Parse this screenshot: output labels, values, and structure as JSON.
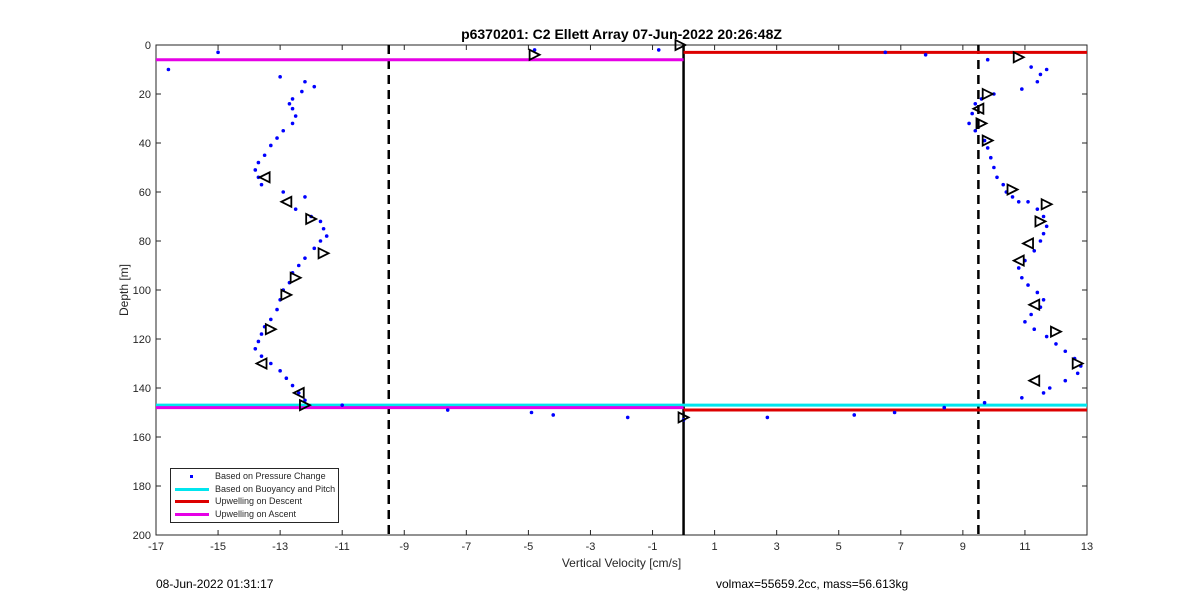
{
  "chart_data": {
    "type": "scatter",
    "title": "p6370201: C2 Ellett Array 07-Jun-2022 20:26:48Z",
    "xlabel": "Vertical Velocity [cm/s]",
    "ylabel": "Depth [m]",
    "xlim": [
      -17,
      13
    ],
    "ylim": [
      0,
      200
    ],
    "y_reversed": true,
    "xticks": [
      -17,
      -15,
      -13,
      -11,
      -9,
      -7,
      -5,
      -3,
      -1,
      1,
      3,
      5,
      7,
      9,
      11,
      13
    ],
    "yticks": [
      0,
      20,
      40,
      60,
      80,
      100,
      120,
      140,
      160,
      180,
      200
    ],
    "grid": false,
    "legend_position": "bottom-left",
    "colors": {
      "pressure": "#0000ff",
      "buoyancy": "#00e5ee",
      "descent": "#dd0000",
      "ascent": "#e600e6",
      "axes": "#262626"
    },
    "legend": [
      {
        "label": "Based on Pressure Change",
        "color": "#0000ff",
        "kind": "dot"
      },
      {
        "label": "Based on Buoyancy and Pitch",
        "color": "#00e5ee",
        "kind": "line"
      },
      {
        "label": "Upwelling on Descent",
        "color": "#dd0000",
        "kind": "line"
      },
      {
        "label": "Upwelling on Ascent",
        "color": "#e600e6",
        "kind": "line"
      }
    ],
    "reference_lines": {
      "dashed_x": [
        -9.5,
        9.5
      ],
      "solid_x": [
        0
      ]
    },
    "series": [
      {
        "name": "Based on Pressure Change",
        "points": [
          [
            -16.6,
            10
          ],
          [
            -15,
            3
          ],
          [
            -4.8,
            2
          ],
          [
            -0.8,
            2
          ],
          [
            6.5,
            3
          ],
          [
            7.8,
            4
          ],
          [
            9.8,
            6
          ],
          [
            -13,
            13
          ],
          [
            -12.2,
            15
          ],
          [
            -12.3,
            19
          ],
          [
            -11.9,
            17
          ],
          [
            -12.6,
            22
          ],
          [
            11.2,
            9
          ],
          [
            11.5,
            12
          ],
          [
            11.7,
            10
          ],
          [
            11.4,
            15
          ],
          [
            10.9,
            18
          ],
          [
            10,
            20
          ],
          [
            -12.7,
            24
          ],
          [
            -12.6,
            26
          ],
          [
            -12.5,
            29
          ],
          [
            -12.6,
            32
          ],
          [
            -12.9,
            35
          ],
          [
            -13.1,
            38
          ],
          [
            -13.3,
            41
          ],
          [
            -13.5,
            45
          ],
          [
            -13.7,
            48
          ],
          [
            -13.8,
            51
          ],
          [
            -13.7,
            54
          ],
          [
            -13.6,
            57
          ],
          [
            9.6,
            22
          ],
          [
            9.4,
            24
          ],
          [
            9.3,
            28
          ],
          [
            9.2,
            32
          ],
          [
            9.4,
            35
          ],
          [
            9.7,
            39
          ],
          [
            9.8,
            42
          ],
          [
            9.9,
            46
          ],
          [
            10,
            50
          ],
          [
            10.1,
            54
          ],
          [
            10.3,
            57
          ],
          [
            10.4,
            60
          ],
          [
            10.6,
            62
          ],
          [
            10.8,
            64
          ],
          [
            -12.9,
            60
          ],
          [
            -12.2,
            62
          ],
          [
            -12.5,
            67
          ],
          [
            -12,
            70
          ],
          [
            -11.7,
            72
          ],
          [
            -11.6,
            75
          ],
          [
            -11.5,
            78
          ],
          [
            -11.7,
            80
          ],
          [
            -11.9,
            83
          ],
          [
            -12.2,
            87
          ],
          [
            -12.4,
            90
          ],
          [
            -12.6,
            93
          ],
          [
            -12.7,
            97
          ],
          [
            -12.9,
            100
          ],
          [
            -13,
            104
          ],
          [
            -13.1,
            108
          ],
          [
            -13.3,
            112
          ],
          [
            -13.5,
            115
          ],
          [
            -13.6,
            118
          ],
          [
            -13.7,
            121
          ],
          [
            -13.8,
            124
          ],
          [
            -13.6,
            127
          ],
          [
            -13.3,
            130
          ],
          [
            -13,
            133
          ],
          [
            -12.8,
            136
          ],
          [
            -12.6,
            139
          ],
          [
            -12.4,
            142
          ],
          [
            -12.2,
            145
          ],
          [
            11.1,
            64
          ],
          [
            11.4,
            67
          ],
          [
            11.6,
            70
          ],
          [
            11.7,
            74
          ],
          [
            11.6,
            77
          ],
          [
            11.5,
            80
          ],
          [
            11.3,
            84
          ],
          [
            11,
            88
          ],
          [
            10.8,
            91
          ],
          [
            10.9,
            95
          ],
          [
            11.1,
            98
          ],
          [
            11.4,
            101
          ],
          [
            11.6,
            104
          ],
          [
            11.5,
            107
          ],
          [
            11.2,
            110
          ],
          [
            11,
            113
          ],
          [
            11.3,
            116
          ],
          [
            11.7,
            119
          ],
          [
            12,
            122
          ],
          [
            12.3,
            125
          ],
          [
            12.6,
            128
          ],
          [
            12.8,
            131
          ],
          [
            12.7,
            134
          ],
          [
            12.3,
            137
          ],
          [
            11.8,
            140
          ],
          [
            11.6,
            142
          ],
          [
            10.9,
            144
          ],
          [
            9.7,
            146
          ],
          [
            -11,
            147
          ],
          [
            -7.6,
            149
          ],
          [
            -4.9,
            150
          ],
          [
            -4.2,
            151
          ],
          [
            -1.8,
            152
          ],
          [
            0,
            153
          ],
          [
            2.7,
            152
          ],
          [
            5.5,
            151
          ],
          [
            6.8,
            150
          ],
          [
            8.4,
            148
          ]
        ]
      },
      {
        "name": "Based on Buoyancy and Pitch",
        "segments": [
          {
            "x": [
              -17,
              13
            ],
            "y": [
              147,
              147
            ]
          }
        ]
      },
      {
        "name": "Upwelling on Descent",
        "segments": [
          {
            "x": [
              0,
              13
            ],
            "y": [
              3,
              3
            ]
          },
          {
            "x": [
              0,
              13
            ],
            "y": [
              149,
              149
            ]
          }
        ]
      },
      {
        "name": "Upwelling on Ascent",
        "segments": [
          {
            "x": [
              -17,
              0
            ],
            "y": [
              6,
              6
            ]
          },
          {
            "x": [
              -17,
              0
            ],
            "y": [
              148,
              148
            ]
          }
        ]
      }
    ],
    "triangle_markers": [
      {
        "x": -0.1,
        "y": 0,
        "dir": "right"
      },
      {
        "x": -4.8,
        "y": 4,
        "dir": "right"
      },
      {
        "x": 10.8,
        "y": 5,
        "dir": "right"
      },
      {
        "x": 9.8,
        "y": 20,
        "dir": "right"
      },
      {
        "x": 9.5,
        "y": 26,
        "dir": "left"
      },
      {
        "x": 9.6,
        "y": 32,
        "dir": "right"
      },
      {
        "x": 9.8,
        "y": 39,
        "dir": "right"
      },
      {
        "x": -13.5,
        "y": 54,
        "dir": "left"
      },
      {
        "x": 10.6,
        "y": 59,
        "dir": "right"
      },
      {
        "x": -12.8,
        "y": 64,
        "dir": "left"
      },
      {
        "x": 11.7,
        "y": 65,
        "dir": "right"
      },
      {
        "x": -12,
        "y": 71,
        "dir": "right"
      },
      {
        "x": 11.5,
        "y": 72,
        "dir": "right"
      },
      {
        "x": 11.1,
        "y": 81,
        "dir": "left"
      },
      {
        "x": -11.6,
        "y": 85,
        "dir": "right"
      },
      {
        "x": 10.8,
        "y": 88,
        "dir": "left"
      },
      {
        "x": -12.5,
        "y": 95,
        "dir": "right"
      },
      {
        "x": -12.8,
        "y": 102,
        "dir": "right"
      },
      {
        "x": 11.3,
        "y": 106,
        "dir": "left"
      },
      {
        "x": -13.3,
        "y": 116,
        "dir": "right"
      },
      {
        "x": 12,
        "y": 117,
        "dir": "right"
      },
      {
        "x": 12.7,
        "y": 130,
        "dir": "right"
      },
      {
        "x": -13.6,
        "y": 130,
        "dir": "left"
      },
      {
        "x": 11.3,
        "y": 137,
        "dir": "left"
      },
      {
        "x": -12.4,
        "y": 142,
        "dir": "left"
      },
      {
        "x": -12.2,
        "y": 147,
        "dir": "right"
      },
      {
        "x": 0,
        "y": 152,
        "dir": "right"
      }
    ]
  },
  "footer": {
    "timestamp": "08-Jun-2022 01:31:17",
    "stats": "volmax=55659.2cc, mass=56.613kg"
  }
}
